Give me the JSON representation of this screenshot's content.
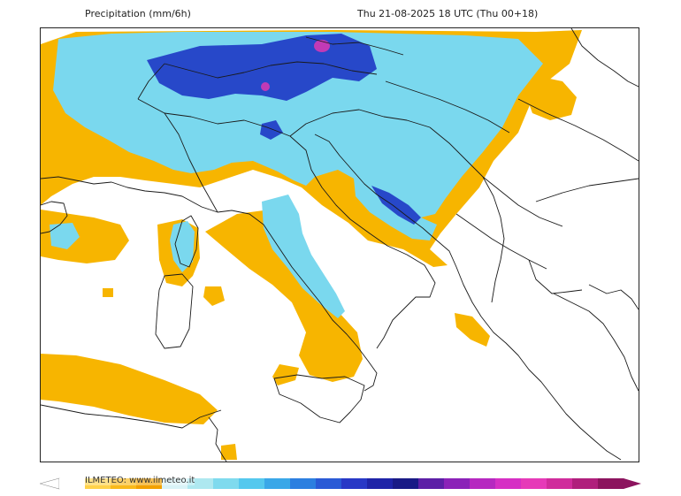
{
  "header": {
    "title": "Precipitation (mm/6h)",
    "valid_time": "Thu 21-08-2025 18 UTC (Thu 00+18)"
  },
  "legend": {
    "brand": "ILMETEO: www.ilmeteo.it",
    "colors": [
      "#ffffff",
      "#ffd24a",
      "#f9b91b",
      "#f2a100",
      "#d9f3f7",
      "#aee8f0",
      "#7fdaee",
      "#55c8ee",
      "#3aa7e8",
      "#2c7fe0",
      "#2a5ad6",
      "#2838c6",
      "#1f24a8",
      "#191a86",
      "#5c1fa6",
      "#8b22b8",
      "#b628c0",
      "#d62fc4",
      "#e63ab8",
      "#d02c9c",
      "#b01f7c",
      "#8c145e"
    ]
  },
  "map": {
    "colors": {
      "dry": "#ffffff",
      "light_precip": "#f7b500",
      "medium_precip": "#7ad8ee",
      "heavy_precip": "#2748c9",
      "very_heavy_precip": "#c23ab6",
      "outline": "#1a1a1a"
    }
  }
}
